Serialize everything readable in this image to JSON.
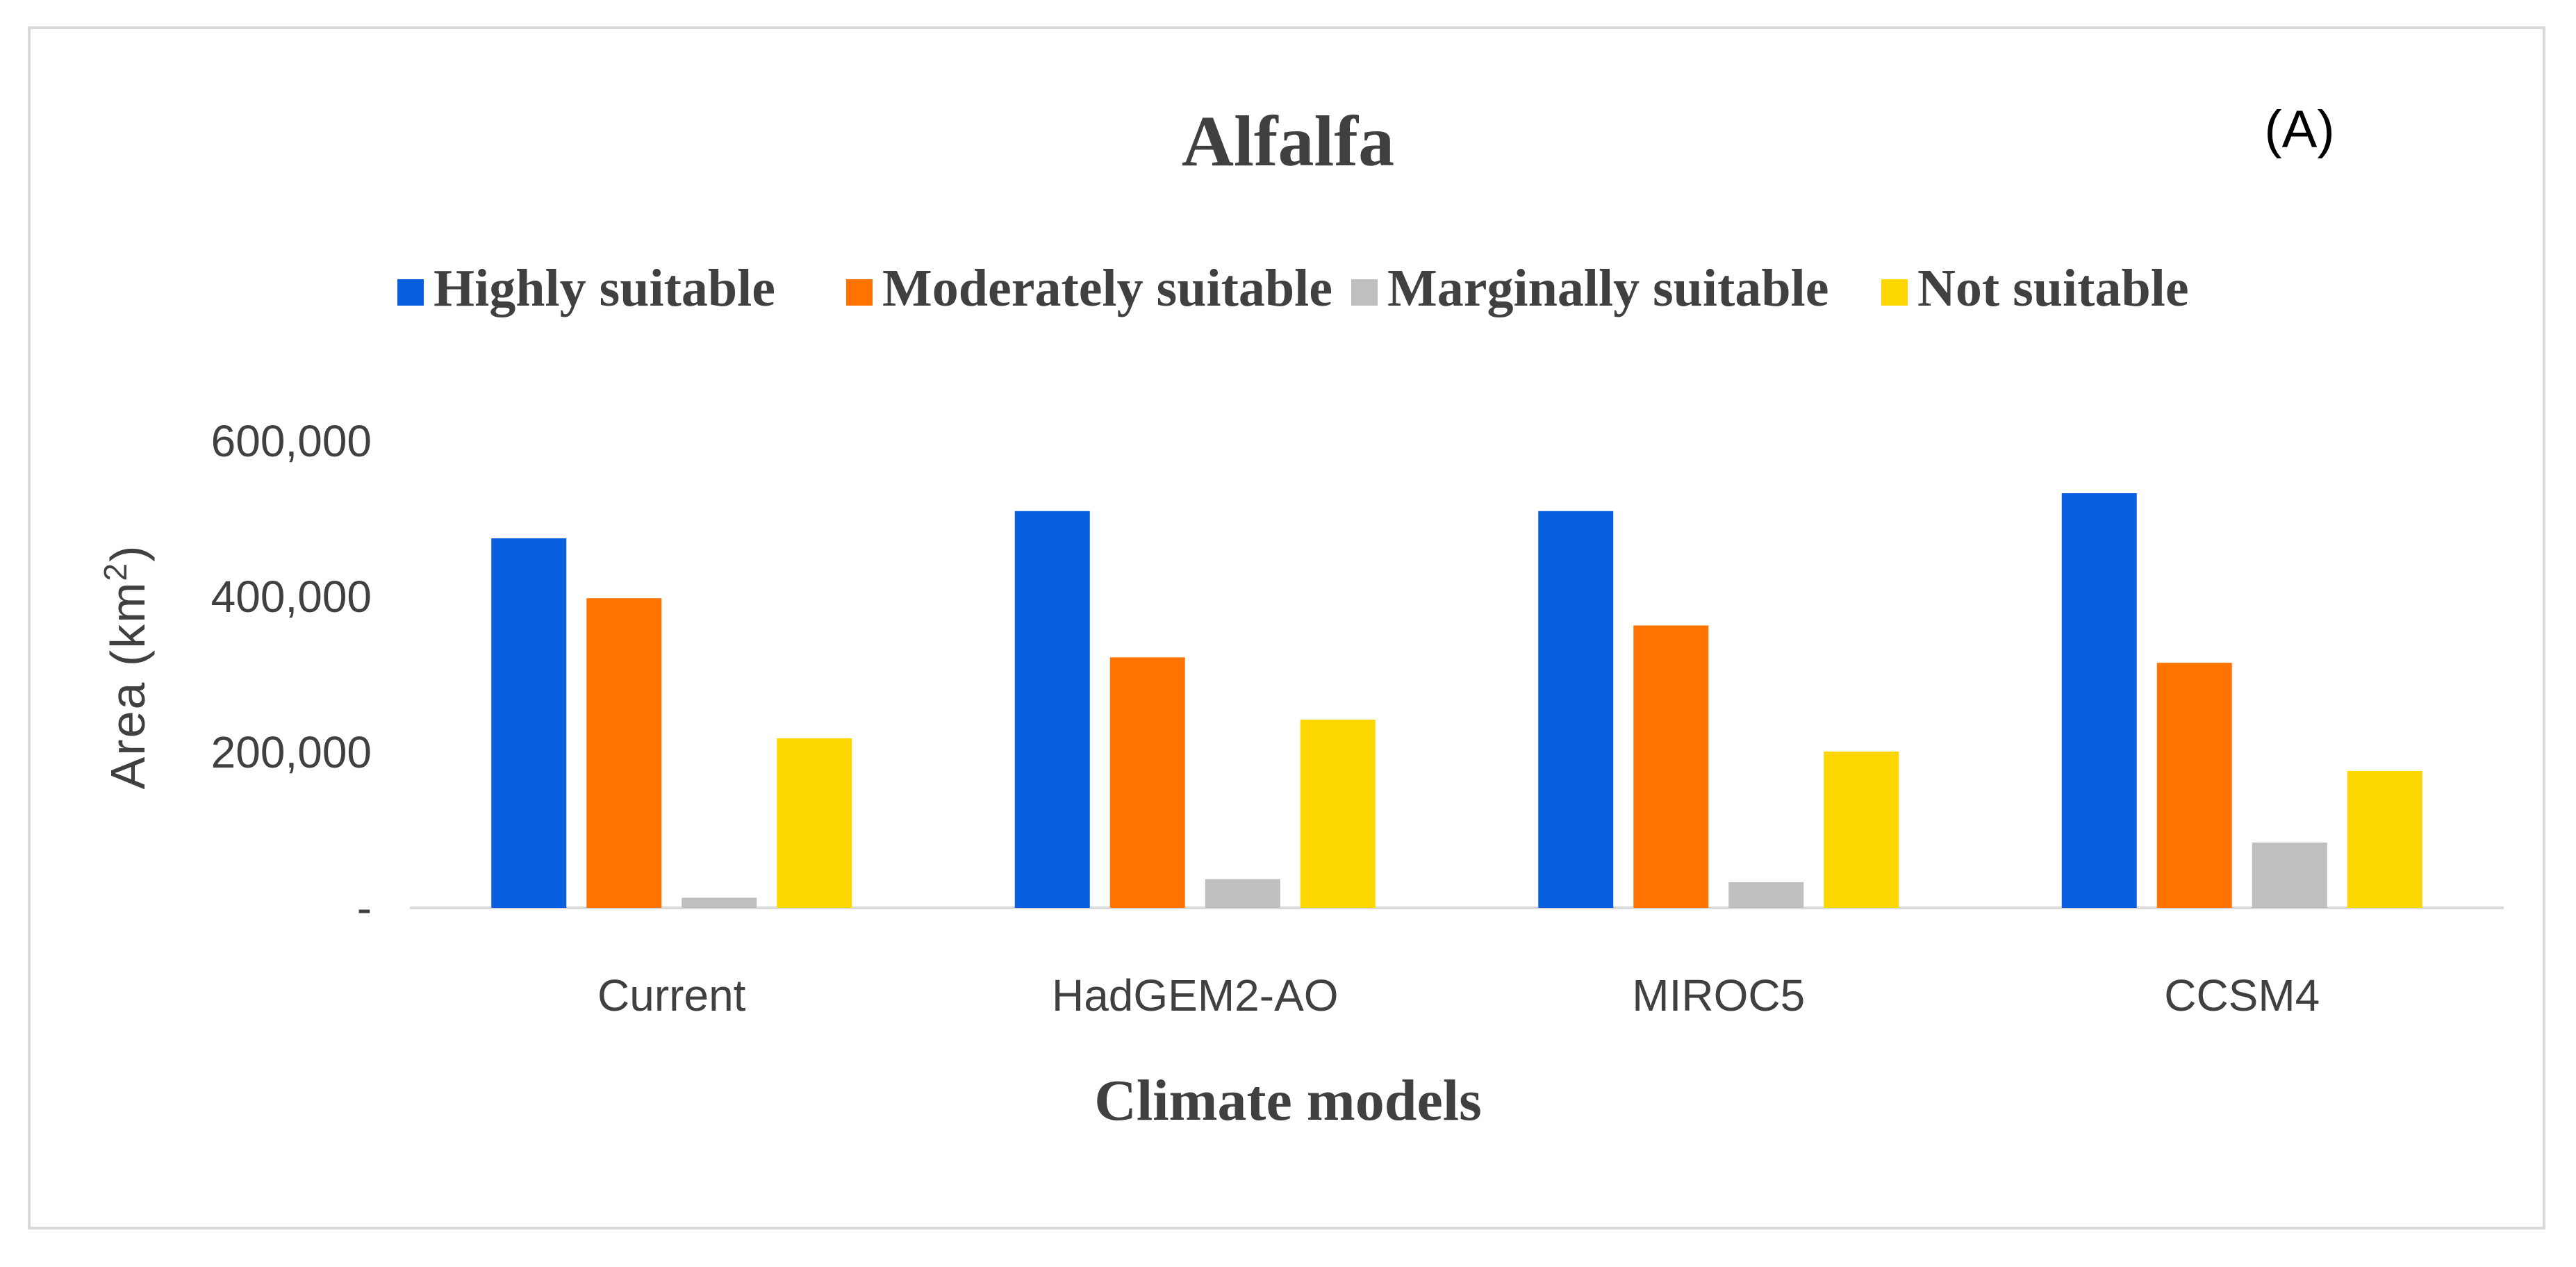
{
  "chart_data": {
    "type": "bar",
    "title": "Alfalfa",
    "panel_label": "(A)",
    "xlabel": "Climate models",
    "ylabel": "Area (km",
    "ylabel_sup": "2",
    "ylabel_close": ")",
    "ylim": [
      0,
      600000
    ],
    "yticks": [
      0,
      200000,
      400000,
      600000
    ],
    "ytick_labels": [
      "-",
      "200,000",
      "400,000",
      "600,000"
    ],
    "categories": [
      "Current",
      "HadGEM2-AO",
      "MIROC5",
      "CCSM4"
    ],
    "series": [
      {
        "name": "Highly suitable",
        "color": "#0a5ee0",
        "values": [
          475000,
          510000,
          510000,
          533000
        ]
      },
      {
        "name": "Moderately suitable",
        "color": "#ff7300",
        "values": [
          398000,
          322000,
          363000,
          315000
        ]
      },
      {
        "name": "Marginally suitable",
        "color": "#bfbfbf",
        "values": [
          13000,
          37000,
          33000,
          84000
        ]
      },
      {
        "name": "Not suitable",
        "color": "#ffd700",
        "values": [
          218000,
          242000,
          201000,
          176000
        ]
      }
    ],
    "legend_position": "top",
    "grid": false,
    "axis_color": "#d9d9d9"
  }
}
